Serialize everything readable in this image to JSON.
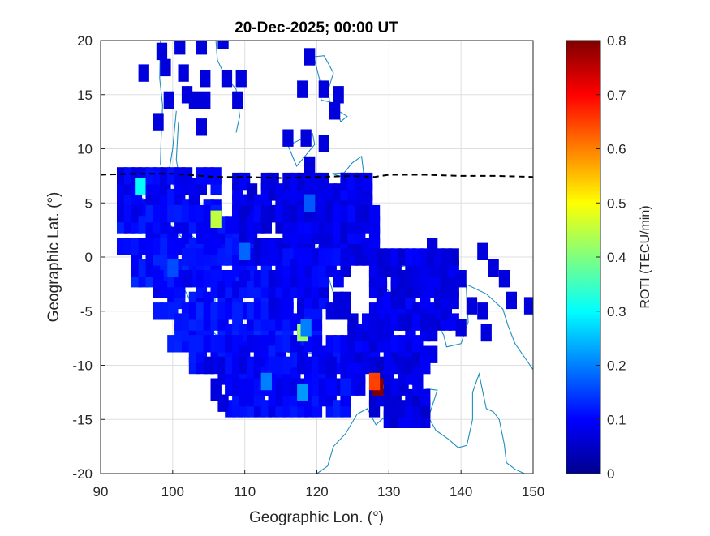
{
  "chart_data": {
    "type": "heatmap",
    "title": "20-Dec-2025; 00:00 UT",
    "xlabel": "Geographic Lon. (°)",
    "ylabel": "Geographic Lat. (°)",
    "xlim": [
      90,
      150
    ],
    "ylim": [
      -20,
      20
    ],
    "xticks": [
      90,
      100,
      110,
      120,
      130,
      140,
      150
    ],
    "yticks": [
      20,
      15,
      10,
      5,
      0,
      -5,
      -10,
      -15,
      -20
    ],
    "grid": true,
    "colorbar": {
      "label": "ROTI (TECU/min)",
      "range": [
        0,
        0.8
      ],
      "ticks": [
        0,
        0.1,
        0.2,
        0.3,
        0.4,
        0.5,
        0.6,
        0.7,
        0.8
      ],
      "colormap": "jet"
    },
    "reference_line": {
      "style": "dashed",
      "color": "#000000",
      "points": [
        [
          90,
          7.6
        ],
        [
          95,
          7.7
        ],
        [
          100,
          7.7
        ],
        [
          104,
          7.5
        ],
        [
          106,
          7.4
        ],
        [
          110,
          7.4
        ],
        [
          115,
          7.3
        ],
        [
          120,
          7.4
        ],
        [
          125,
          7.5
        ],
        [
          128,
          7.4
        ],
        [
          130,
          7.6
        ],
        [
          135,
          7.6
        ],
        [
          140,
          7.5
        ],
        [
          145,
          7.5
        ],
        [
          150,
          7.4
        ]
      ]
    },
    "regions": [
      {
        "lon": [
          93,
          106
        ],
        "lat": [
          4.5,
          7.5
        ],
        "value": 0.09
      },
      {
        "lon": [
          93,
          109
        ],
        "lat": [
          1,
          4.5
        ],
        "value": 0.1
      },
      {
        "lon": [
          95,
          113
        ],
        "lat": [
          -2,
          1
        ],
        "value": 0.11
      },
      {
        "lon": [
          98,
          116
        ],
        "lat": [
          -5,
          -2
        ],
        "value": 0.1
      },
      {
        "lon": [
          100,
          120
        ],
        "lat": [
          -8,
          -5
        ],
        "value": 0.11
      },
      {
        "lon": [
          103,
          124
        ],
        "lat": [
          -10,
          -8
        ],
        "value": 0.1
      },
      {
        "lon": [
          106,
          126
        ],
        "lat": [
          -12,
          -10
        ],
        "value": 0.09
      },
      {
        "lon": [
          108,
          124
        ],
        "lat": [
          -14,
          -12
        ],
        "value": 0.1
      },
      {
        "lon": [
          109,
          127
        ],
        "lat": [
          4,
          7
        ],
        "value": 0.08
      },
      {
        "lon": [
          110,
          128
        ],
        "lat": [
          0,
          4
        ],
        "value": 0.08
      },
      {
        "lon": [
          114,
          124
        ],
        "lat": [
          -5,
          0
        ],
        "value": 0.09
      },
      {
        "lon": [
          128,
          139
        ],
        "lat": [
          -6,
          0
        ],
        "value": 0.08
      },
      {
        "lon": [
          125,
          136
        ],
        "lat": [
          -10,
          -6
        ],
        "value": 0.08
      },
      {
        "lon": [
          128,
          135
        ],
        "lat": [
          -15,
          -10
        ],
        "value": 0.07
      }
    ],
    "scattered_cells": [
      {
        "lon": 98.5,
        "lat": 19
      },
      {
        "lon": 101,
        "lat": 19.5
      },
      {
        "lon": 104,
        "lat": 19.5
      },
      {
        "lon": 107,
        "lat": 20
      },
      {
        "lon": 99,
        "lat": 17.5
      },
      {
        "lon": 96,
        "lat": 17
      },
      {
        "lon": 101.5,
        "lat": 17
      },
      {
        "lon": 104.5,
        "lat": 16.5
      },
      {
        "lon": 107.5,
        "lat": 16.5
      },
      {
        "lon": 109.5,
        "lat": 16.5
      },
      {
        "lon": 102,
        "lat": 15
      },
      {
        "lon": 99.5,
        "lat": 14.5
      },
      {
        "lon": 103,
        "lat": 14.5
      },
      {
        "lon": 104.5,
        "lat": 14.5
      },
      {
        "lon": 109,
        "lat": 14.5
      },
      {
        "lon": 98,
        "lat": 12.5
      },
      {
        "lon": 104,
        "lat": 12
      },
      {
        "lon": 119,
        "lat": 18.5
      },
      {
        "lon": 118,
        "lat": 15.5
      },
      {
        "lon": 121,
        "lat": 15.5
      },
      {
        "lon": 123,
        "lat": 15
      },
      {
        "lon": 122.5,
        "lat": 13.5
      },
      {
        "lon": 116,
        "lat": 11
      },
      {
        "lon": 118.5,
        "lat": 11
      },
      {
        "lon": 121,
        "lat": 10.5
      },
      {
        "lon": 119,
        "lat": 8.5
      },
      {
        "lon": 105,
        "lat": -10
      },
      {
        "lon": 106,
        "lat": -12.5
      },
      {
        "lon": 107,
        "lat": -13.5
      },
      {
        "lon": 140,
        "lat": -2
      },
      {
        "lon": 143,
        "lat": 0.5
      },
      {
        "lon": 144.5,
        "lat": -1
      },
      {
        "lon": 146,
        "lat": -2
      },
      {
        "lon": 147,
        "lat": -4
      },
      {
        "lon": 149.5,
        "lat": -4.5
      },
      {
        "lon": 141.5,
        "lat": -4.5
      },
      {
        "lon": 140,
        "lat": -6.5
      },
      {
        "lon": 143,
        "lat": -5
      },
      {
        "lon": 143.5,
        "lat": -7
      },
      {
        "lon": 136,
        "lat": 1
      },
      {
        "lon": 138,
        "lat": 0
      },
      {
        "lon": 138.5,
        "lat": -3
      }
    ],
    "hotspots": [
      {
        "lon": 95.5,
        "lat": 6.5,
        "value": 0.3
      },
      {
        "lon": 106,
        "lat": 3.5,
        "value": 0.45
      },
      {
        "lon": 118,
        "lat": -7,
        "value": 0.42
      },
      {
        "lon": 118.5,
        "lat": -6.5,
        "value": 0.2
      },
      {
        "lon": 110,
        "lat": 0.5,
        "value": 0.18
      },
      {
        "lon": 119,
        "lat": 5,
        "value": 0.17
      },
      {
        "lon": 113,
        "lat": -11.5,
        "value": 0.2
      },
      {
        "lon": 118,
        "lat": -12.5,
        "value": 0.22
      },
      {
        "lon": 100,
        "lat": -1,
        "value": 0.16
      },
      {
        "lon": 128.5,
        "lat": -12,
        "value": 0.8
      },
      {
        "lon": 128,
        "lat": -11.5,
        "value": 0.65
      }
    ]
  }
}
